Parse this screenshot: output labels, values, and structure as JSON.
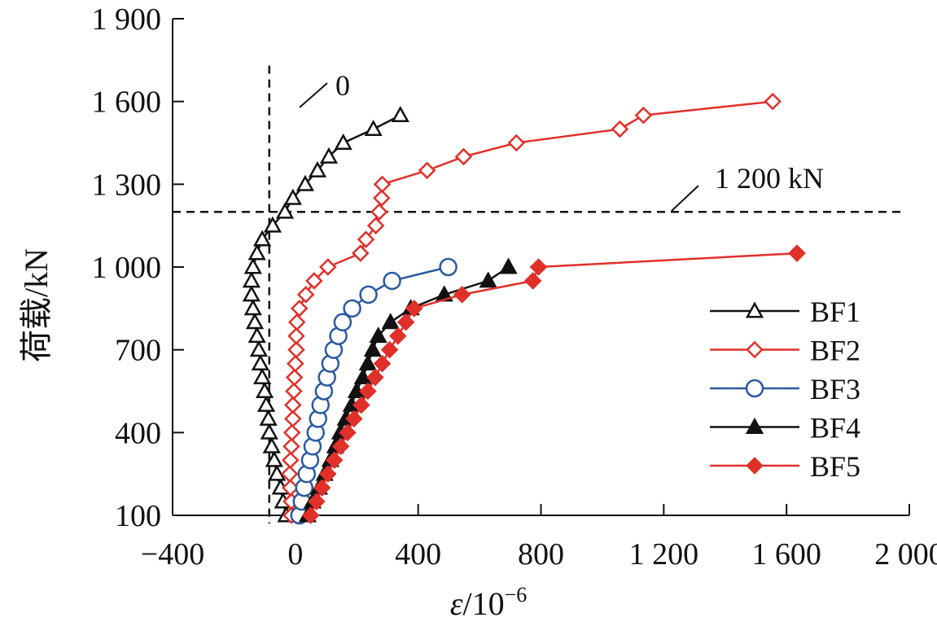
{
  "chart_data": {
    "type": "line",
    "title": "",
    "xlabel": "ε/10⁻⁶",
    "xlabel_main": "ε/10",
    "xlabel_sup": "−6",
    "ylabel": "荷载/kN",
    "xlim": [
      -400,
      2000
    ],
    "ylim": [
      100,
      1900
    ],
    "xticks": [
      -400,
      0,
      400,
      800,
      1200,
      1600,
      2000
    ],
    "xtick_labels": [
      "−400",
      "0",
      "400",
      "800",
      "1 200",
      "1 600",
      "2 000"
    ],
    "yticks": [
      100,
      400,
      700,
      1000,
      1300,
      1600,
      1900
    ],
    "ytick_labels": [
      "100",
      "400",
      "700",
      "1 000",
      "1 300",
      "1 600",
      "1 900"
    ],
    "grid": false,
    "legend_position": "right-middle",
    "reference_lines": [
      {
        "orientation": "vertical",
        "value": -85,
        "style": "dashed",
        "y_range": [
          100,
          1730
        ]
      },
      {
        "orientation": "horizontal",
        "value": 1200,
        "style": "dashed",
        "x_range": [
          -400,
          2000
        ]
      }
    ],
    "annotations": [
      {
        "text": "0",
        "points_to": "vertical-dashed-line"
      },
      {
        "text": "1 200 kN",
        "points_to": "horizontal-dashed-line"
      }
    ],
    "series": [
      {
        "name": "BF1",
        "color": "#111111",
        "marker": "triangle-open",
        "x": [
          -30,
          -40,
          -48,
          -60,
          -69,
          -77,
          -85,
          -88,
          -95,
          -100,
          -108,
          -114,
          -119,
          -125,
          -132,
          -138,
          -143,
          -143,
          -138,
          -125,
          -108,
          -74,
          -34,
          -8,
          32,
          72,
          109,
          156,
          254,
          342
        ],
        "y": [
          100,
          150,
          200,
          250,
          300,
          350,
          400,
          450,
          500,
          550,
          600,
          650,
          700,
          750,
          800,
          850,
          900,
          950,
          1000,
          1050,
          1100,
          1150,
          1200,
          1250,
          1300,
          1350,
          1400,
          1450,
          1500,
          1550
        ]
      },
      {
        "name": "BF2",
        "color": "#e0302a",
        "marker": "diamond-open",
        "x": [
          -13,
          -13,
          -16,
          -19,
          -16,
          -13,
          -11,
          -8,
          -8,
          -5,
          -3,
          0,
          3,
          3,
          5,
          13,
          34,
          61,
          106,
          212,
          230,
          262,
          273,
          281,
          283,
          429,
          548,
          720,
          1057,
          1134,
          1555
        ],
        "y": [
          100,
          150,
          200,
          250,
          300,
          350,
          400,
          450,
          500,
          550,
          600,
          650,
          700,
          750,
          800,
          850,
          900,
          950,
          1000,
          1050,
          1100,
          1150,
          1200,
          1250,
          1300,
          1350,
          1400,
          1450,
          1500,
          1550,
          1600
        ]
      },
      {
        "name": "BF3",
        "color": "#2a5a9e",
        "marker": "circle-open",
        "x": [
          13,
          21,
          29,
          37,
          48,
          56,
          66,
          74,
          82,
          93,
          103,
          114,
          125,
          140,
          154,
          185,
          238,
          315,
          498
        ],
        "y": [
          100,
          150,
          200,
          250,
          300,
          350,
          400,
          450,
          500,
          550,
          600,
          650,
          700,
          750,
          800,
          850,
          900,
          950,
          1000
        ]
      },
      {
        "name": "BF4",
        "color": "#111111",
        "marker": "triangle-filled",
        "x": [
          40,
          56,
          77,
          95,
          114,
          130,
          146,
          164,
          183,
          199,
          220,
          236,
          252,
          270,
          310,
          376,
          485,
          628,
          694
        ],
        "y": [
          100,
          150,
          200,
          250,
          300,
          350,
          400,
          450,
          500,
          550,
          600,
          650,
          700,
          750,
          800,
          850,
          900,
          950,
          1000
        ]
      },
      {
        "name": "BF5",
        "color": "#e0302a",
        "marker": "diamond-filled",
        "x": [
          50,
          69,
          87,
          106,
          127,
          148,
          170,
          191,
          215,
          236,
          260,
          283,
          307,
          334,
          360,
          387,
          543,
          774,
          792,
          1634
        ],
        "y": [
          100,
          150,
          200,
          250,
          300,
          350,
          400,
          450,
          500,
          550,
          600,
          650,
          700,
          750,
          800,
          850,
          900,
          950,
          1000,
          1050
        ]
      }
    ]
  }
}
